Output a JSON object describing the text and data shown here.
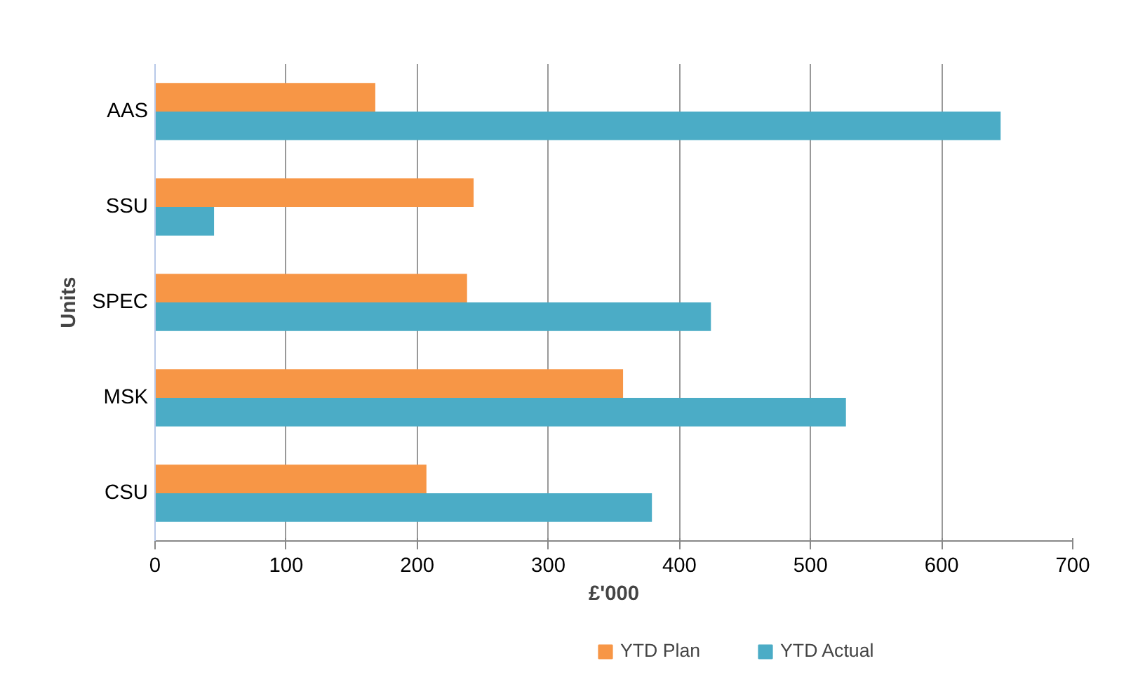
{
  "chart_data": {
    "type": "bar",
    "orientation": "horizontal",
    "xlabel": "£'000",
    "ylabel": "Units",
    "categories": [
      "AAS",
      "SSU",
      "SPEC",
      "MSK",
      "CSU"
    ],
    "series": [
      {
        "name": "YTD Plan",
        "color": "#f79646",
        "values": [
          168,
          243,
          238,
          357,
          207
        ]
      },
      {
        "name": "YTD Actual",
        "color": "#4bacc6",
        "values": [
          645,
          45,
          424,
          527,
          379
        ]
      }
    ],
    "xlim": [
      0,
      700
    ],
    "xticks": [
      0,
      100,
      200,
      300,
      400,
      500,
      600,
      700
    ],
    "grid": "x",
    "legend": "bottom"
  }
}
